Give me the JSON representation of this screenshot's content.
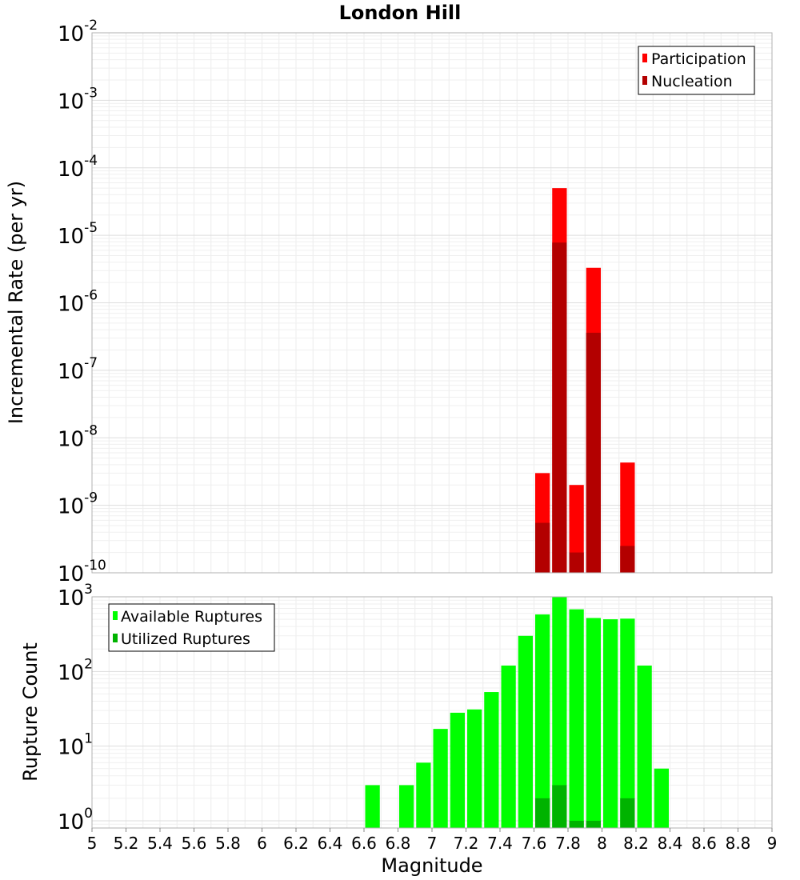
{
  "chart_data": {
    "title": "London Hill",
    "xlabel": "Magnitude",
    "xlim": [
      5,
      9
    ],
    "xticks": [
      "5",
      "5.2",
      "5.4",
      "5.6",
      "5.8",
      "6",
      "6.2",
      "6.4",
      "6.6",
      "6.8",
      "7",
      "7.2",
      "7.4",
      "7.6",
      "7.8",
      "8",
      "8.2",
      "8.4",
      "8.6",
      "8.8",
      "9"
    ],
    "bin_width": 0.1,
    "panels": [
      {
        "type": "bar",
        "ylabel": "Incremental Rate (per yr)",
        "yscale": "log",
        "ylim": [
          1e-10,
          0.01
        ],
        "ytick_exponents": [
          "-10",
          "-9",
          "-8",
          "-7",
          "-6",
          "-5",
          "-4",
          "-3",
          "-2"
        ],
        "grid": true,
        "legend_position": "top-right",
        "series": [
          {
            "name": "Participation",
            "color": "#ff0000",
            "x": [
              7.65,
              7.75,
              7.85,
              7.95,
              8.15
            ],
            "values": [
              3e-09,
              5e-05,
              2e-09,
              3.3e-06,
              4.3e-09
            ]
          },
          {
            "name": "Nucleation",
            "color": "#b30000",
            "x": [
              7.65,
              7.75,
              7.85,
              7.95,
              8.15
            ],
            "values": [
              5.5e-10,
              7.8e-06,
              2e-10,
              3.6e-07,
              2.5e-10
            ]
          }
        ]
      },
      {
        "type": "bar",
        "ylabel": "Rupture Count",
        "yscale": "log",
        "ylim": [
          0.8,
          1000
        ],
        "ytick_exponents": [
          "0",
          "1",
          "2",
          "3"
        ],
        "grid": true,
        "legend_position": "top-left",
        "series": [
          {
            "name": "Available Ruptures",
            "color": "#00ff00",
            "x": [
              6.65,
              6.85,
              6.95,
              7.05,
              7.15,
              7.25,
              7.35,
              7.45,
              7.55,
              7.65,
              7.75,
              7.85,
              7.95,
              8.05,
              8.15,
              8.25,
              8.35
            ],
            "values": [
              3,
              3,
              6,
              17,
              28,
              31,
              53,
              120,
              300,
              580,
              1000,
              680,
              520,
              500,
              510,
              120,
              5
            ]
          },
          {
            "name": "Utilized Ruptures",
            "color": "#00b300",
            "x": [
              7.65,
              7.75,
              7.85,
              7.95,
              8.15
            ],
            "values": [
              2,
              3,
              1,
              1,
              2
            ]
          }
        ]
      }
    ]
  }
}
